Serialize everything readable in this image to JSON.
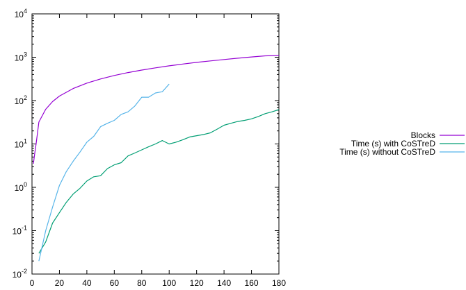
{
  "chart_data": {
    "type": "line",
    "xlim": [
      0,
      180
    ],
    "ylim": [
      0.01,
      10000
    ],
    "yscale": "log",
    "grid": false,
    "legend_position": "right",
    "x_ticks": [
      0,
      20,
      40,
      60,
      80,
      100,
      120,
      140,
      160,
      180
    ],
    "y_ticks": [
      {
        "value": 0.01,
        "base": "10",
        "exp": "-2"
      },
      {
        "value": 0.1,
        "base": "10",
        "exp": "-1"
      },
      {
        "value": 1,
        "base": "10",
        "exp": "0"
      },
      {
        "value": 10,
        "base": "10",
        "exp": "1"
      },
      {
        "value": 100,
        "base": "10",
        "exp": "2"
      },
      {
        "value": 1000,
        "base": "10",
        "exp": "3"
      },
      {
        "value": 10000,
        "base": "10",
        "exp": "4"
      }
    ],
    "series": [
      {
        "name": "Blocks",
        "color": "#9400d3",
        "x": [
          1,
          2,
          3,
          5,
          10,
          15,
          20,
          30,
          40,
          50,
          60,
          70,
          80,
          90,
          100,
          110,
          120,
          130,
          140,
          150,
          160,
          170,
          180
        ],
        "y": [
          3.5,
          6,
          10,
          32,
          63,
          95,
          127,
          190,
          253,
          316,
          380,
          443,
          506,
          570,
          633,
          696,
          760,
          823,
          886,
          950,
          1013,
          1076,
          1100
        ]
      },
      {
        "name": "Time (s) with CoSTreD",
        "color": "#009e73",
        "x": [
          5,
          10,
          15,
          20,
          25,
          30,
          35,
          40,
          45,
          50,
          55,
          60,
          65,
          70,
          75,
          80,
          85,
          90,
          95,
          100,
          105,
          110,
          115,
          120,
          125,
          130,
          135,
          140,
          145,
          150,
          155,
          160,
          165,
          170,
          175,
          180
        ],
        "y": [
          0.03,
          0.055,
          0.15,
          0.26,
          0.45,
          0.7,
          0.95,
          1.4,
          1.75,
          1.85,
          2.7,
          3.3,
          3.7,
          5.3,
          6.2,
          7.3,
          8.6,
          10,
          12,
          10,
          11,
          12.5,
          14.5,
          15.5,
          16.5,
          18,
          22,
          27,
          30,
          33,
          35,
          38,
          43,
          50,
          55,
          62
        ]
      },
      {
        "name": "Time (s) without CoSTreD",
        "color": "#56b4e9",
        "x": [
          5,
          10,
          15,
          20,
          25,
          30,
          35,
          40,
          45,
          50,
          55,
          60,
          65,
          70,
          75,
          80,
          85,
          90,
          95,
          100
        ],
        "y": [
          0.02,
          0.1,
          0.35,
          1.1,
          2.3,
          4,
          6.5,
          11,
          15,
          25,
          30,
          35,
          48,
          55,
          75,
          120,
          120,
          150,
          160,
          240
        ]
      }
    ]
  }
}
